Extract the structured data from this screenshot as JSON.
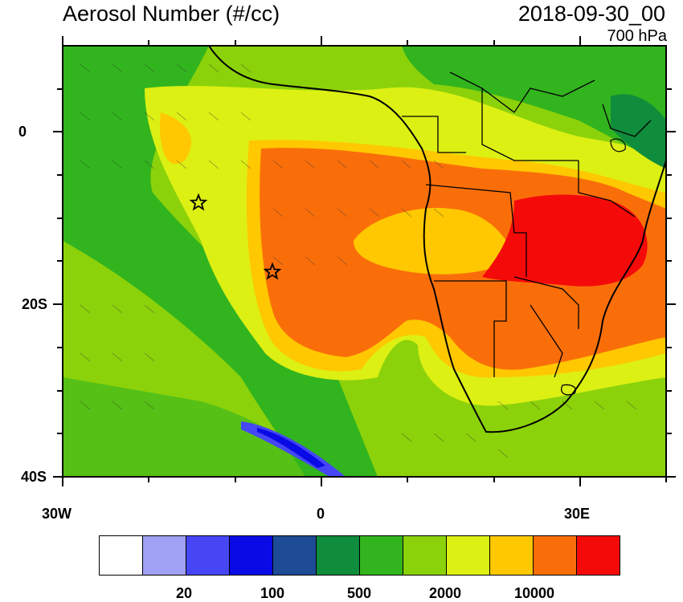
{
  "title": "Aerosol Number (#/cc)",
  "datetime": "2018-09-30_00",
  "level": "700 hPa",
  "lat_labels": [
    "0",
    "20S",
    "40S"
  ],
  "lon_labels": [
    "30W",
    "0",
    "30E"
  ],
  "legend": {
    "colors": [
      "#ffffff",
      "#a0a0f5",
      "#4646f5",
      "#0a0ae6",
      "#1e4b96",
      "#0f8c3c",
      "#32b41e",
      "#8cd20a",
      "#dcf014",
      "#ffc800",
      "#fa6e0a",
      "#f50a0a"
    ],
    "labels": [
      "20",
      "100",
      "500",
      "2000",
      "10000"
    ]
  },
  "map": {
    "lon_range": [
      -30,
      40
    ],
    "lat_range": [
      -40,
      10
    ],
    "markers": [
      {
        "name": "star",
        "lon": -14.5,
        "lat": -8
      },
      {
        "name": "star",
        "lon": -5.6,
        "lat": -16
      }
    ]
  }
}
